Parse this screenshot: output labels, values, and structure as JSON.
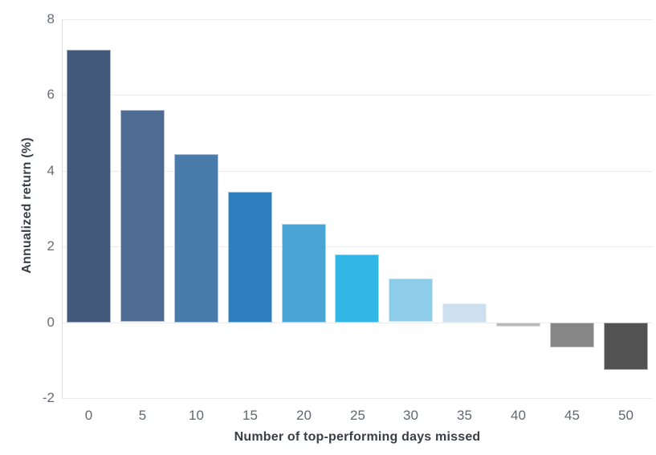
{
  "chart_data": {
    "type": "bar",
    "title": "",
    "xlabel": "Number of top-performing days missed",
    "ylabel": "Annualized return (%)",
    "categories": [
      "0",
      "5",
      "10",
      "15",
      "20",
      "25",
      "30",
      "35",
      "40",
      "45",
      "50"
    ],
    "values": [
      7.2,
      5.6,
      4.45,
      3.45,
      2.6,
      1.8,
      1.15,
      0.5,
      -0.1,
      -0.65,
      -1.25
    ],
    "bar_colors": [
      "#42597b",
      "#4d6b93",
      "#497caa",
      "#2d80bd",
      "#4ba4d6",
      "#32b6e6",
      "#8dcdea",
      "#cde0f0",
      "#b8b9ba",
      "#868686",
      "#525252"
    ],
    "yticks": [
      8,
      6,
      4,
      2,
      0,
      -2
    ],
    "ylim": [
      -2,
      8
    ],
    "grid": true,
    "legend": "none",
    "gridline_color": "#ececec",
    "axis_line_color": "#e2e2e2",
    "tick_label_color": "#686d73",
    "axis_title_color": "#3a3e45",
    "background_color": "#ffffff"
  }
}
